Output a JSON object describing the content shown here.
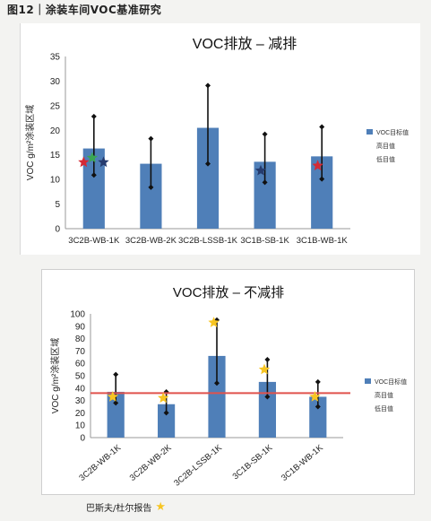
{
  "header": {
    "label": "图12｜涂装车间VOC基准研究"
  },
  "chart_data": [
    {
      "type": "bar",
      "title": "VOC排放 – 减排",
      "ylabel": "VOC g/m²涂装区域",
      "ylim": [
        0,
        35
      ],
      "yticks": [
        0,
        5,
        10,
        15,
        20,
        25,
        30,
        35
      ],
      "categories": [
        "3C2B-WB-1K",
        "3C2B-WB-2K",
        "3C2B-LSSB-1K",
        "3C1B-SB-1K",
        "3C1B-WB-1K"
      ],
      "series": [
        {
          "name": "VOC目标值",
          "values": [
            16.3,
            13.2,
            20.5,
            13.6,
            14.7
          ],
          "color": "#4f7fb8"
        }
      ],
      "error_high": [
        22.8,
        18.3,
        29.1,
        19.2,
        20.7
      ],
      "error_low": [
        10.9,
        8.4,
        13.2,
        9.4,
        10.1
      ],
      "markers": [
        {
          "category": 0,
          "value": 13.5,
          "shape": "star",
          "color": "#d42a35",
          "offset": -0.3
        },
        {
          "category": 0,
          "value": 14.4,
          "shape": "star",
          "color": "#3aa655",
          "offset": -0.05
        },
        {
          "category": 0,
          "value": 13.5,
          "shape": "star",
          "color": "#253b6e",
          "offset": 0.28
        },
        {
          "category": 3,
          "value": 11.8,
          "shape": "star",
          "color": "#253b6e",
          "offset": -0.12
        },
        {
          "category": 4,
          "value": 12.8,
          "shape": "star",
          "color": "#d42a35",
          "offset": -0.12
        }
      ],
      "legend": [
        "VOC目标值",
        "高目值",
        "低目值"
      ],
      "legend_position": "right",
      "grid": false
    },
    {
      "type": "bar",
      "title": "VOC排放 – 不减排",
      "ylabel": "VOC g/m²涂装区域",
      "ylim": [
        0,
        100
      ],
      "yticks": [
        0,
        10,
        20,
        30,
        40,
        50,
        60,
        70,
        80,
        90,
        100
      ],
      "categories": [
        "3C2B-WB-1K",
        "3C2B-WB-2K",
        "3C2B-LSSB-1K",
        "3C1B-SB-1K",
        "3C1B-WB-1K"
      ],
      "series": [
        {
          "name": "VOC目标值",
          "values": [
            37,
            27,
            66,
            45,
            33
          ],
          "color": "#4f7fb8"
        }
      ],
      "error_high": [
        51,
        37,
        95,
        63,
        45
      ],
      "error_low": [
        28,
        20,
        44,
        33,
        25
      ],
      "reference_line": {
        "value": 36,
        "color": "#e0524c"
      },
      "markers": [
        {
          "category": 0,
          "value": 33,
          "shape": "star",
          "color": "#f7c522",
          "offset": -0.1
        },
        {
          "category": 1,
          "value": 32,
          "shape": "star",
          "color": "#f7c522",
          "offset": -0.1
        },
        {
          "category": 2,
          "value": 93,
          "shape": "star",
          "color": "#f7c522",
          "offset": -0.1
        },
        {
          "category": 3,
          "value": 55,
          "shape": "star",
          "color": "#f7c522",
          "offset": -0.1
        },
        {
          "category": 4,
          "value": 33,
          "shape": "star",
          "color": "#f7c522",
          "offset": -0.1
        }
      ],
      "legend": [
        "VOC目标值",
        "高目值",
        "低目值"
      ],
      "legend_position": "right",
      "grid": false,
      "rotated_xlabels": true
    }
  ],
  "footer": {
    "label": "巴斯夫/杜尔报告"
  }
}
